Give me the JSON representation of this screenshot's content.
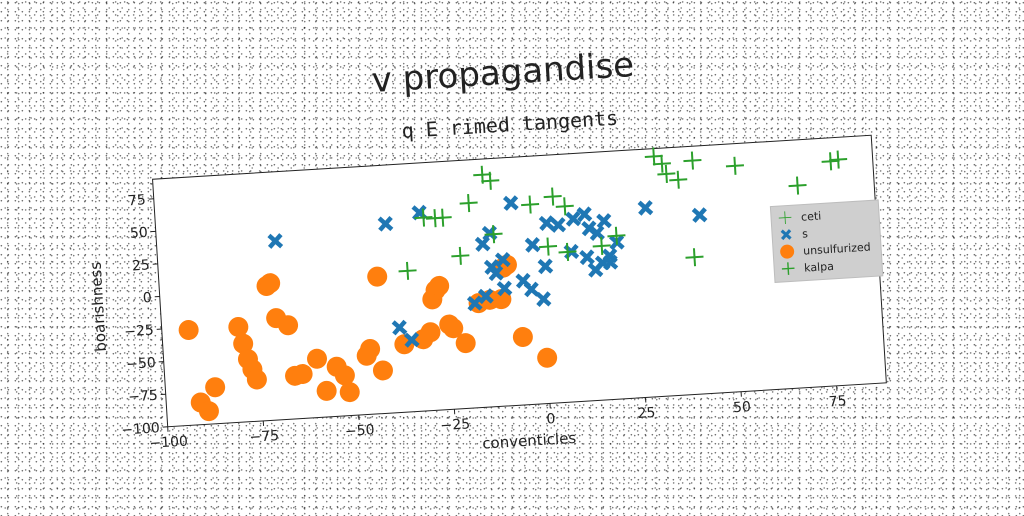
{
  "chart_data": {
    "type": "scatter",
    "title": "v propagandise",
    "subtitle": "q E rimed tangents",
    "xlabel": "conventicles",
    "ylabel": "boarishness",
    "xlim": [
      -100,
      88
    ],
    "ylim": [
      -100,
      90
    ],
    "x_ticks": [
      -100,
      -75,
      -50,
      -25,
      0,
      25,
      50,
      75
    ],
    "y_ticks": [
      -100,
      -75,
      -50,
      -25,
      0,
      25,
      50,
      75
    ],
    "x_tick_labels": [
      "−100",
      "−75",
      "−50",
      "−25",
      "0",
      "25",
      "50",
      "75"
    ],
    "y_tick_labels": [
      "−100",
      "−75",
      "−50",
      "−25",
      "0",
      "25",
      "50",
      "75"
    ],
    "grid": false,
    "legend_position": "right",
    "series": [
      {
        "name": "ceti",
        "marker": "thin-plus",
        "color": "#2ca02c",
        "points": []
      },
      {
        "name": "s",
        "marker": "x",
        "color": "#1f77b4",
        "points": [
          [
            -69,
            37
          ],
          [
            -40,
            45
          ],
          [
            -31,
            52
          ],
          [
            -15,
            25
          ],
          [
            -13,
            33
          ],
          [
            -7,
            55
          ],
          [
            -15,
            -15
          ],
          [
            -13,
            7
          ],
          [
            -10,
            12
          ],
          [
            2,
            38
          ],
          [
            5,
            36
          ],
          [
            9,
            40
          ],
          [
            12,
            43
          ],
          [
            13,
            32
          ],
          [
            15,
            28
          ],
          [
            17,
            37
          ],
          [
            20,
            20
          ],
          [
            28,
            45
          ],
          [
            42,
            37
          ],
          [
            -2,
            22
          ],
          [
            1,
            5
          ],
          [
            8,
            15
          ],
          [
            12,
            10
          ],
          [
            16,
            5
          ],
          [
            18,
            10
          ],
          [
            -10,
            -10
          ],
          [
            -5,
            -5
          ],
          [
            -3,
            -12
          ],
          [
            0,
            -20
          ],
          [
            -38,
            -35
          ],
          [
            -35,
            -45
          ],
          [
            -18,
            -20
          ],
          [
            -15,
            -15
          ],
          [
            14,
            0
          ],
          [
            18,
            5
          ],
          [
            -12,
            2
          ]
        ]
      },
      {
        "name": "unsulfurized",
        "marker": "circle",
        "color": "#ff7f0e",
        "points": [
          [
            -93,
            -27
          ],
          [
            -91,
            -83
          ],
          [
            -89,
            -90
          ],
          [
            -87,
            -72
          ],
          [
            -80,
            -27
          ],
          [
            -79,
            -40
          ],
          [
            -78,
            -52
          ],
          [
            -77,
            -60
          ],
          [
            -76,
            -68
          ],
          [
            -72,
            3
          ],
          [
            -71,
            5
          ],
          [
            -70,
            -22
          ],
          [
            -67,
            -28
          ],
          [
            -66,
            -67
          ],
          [
            -64,
            -66
          ],
          [
            -60,
            -55
          ],
          [
            -58,
            -80
          ],
          [
            -55,
            -62
          ],
          [
            -53,
            -69
          ],
          [
            -52,
            -82
          ],
          [
            -47,
            -55
          ],
          [
            -46,
            -50
          ],
          [
            -43,
            -67
          ],
          [
            -43,
            5
          ],
          [
            -37,
            -48
          ],
          [
            -32,
            -45
          ],
          [
            -30,
            -40
          ],
          [
            -29,
            -15
          ],
          [
            -28,
            -8
          ],
          [
            -27,
            -5
          ],
          [
            -25,
            -35
          ],
          [
            -24,
            -38
          ],
          [
            -21,
            -50
          ],
          [
            -17,
            -20
          ],
          [
            -14,
            -18
          ],
          [
            -11,
            -18
          ],
          [
            -10,
            6
          ],
          [
            -9,
            8
          ],
          [
            -6,
            -48
          ],
          [
            0,
            -65
          ]
        ]
      },
      {
        "name": "kalpa",
        "marker": "plus",
        "color": "#2ca02c",
        "points": [
          [
            31,
            84
          ],
          [
            33,
            78
          ],
          [
            41,
            79
          ],
          [
            34,
            70
          ],
          [
            37,
            65
          ],
          [
            52,
            73
          ],
          [
            77,
            72
          ],
          [
            79,
            73
          ],
          [
            68,
            55
          ],
          [
            -14,
            78
          ],
          [
            -12,
            73
          ],
          [
            -2,
            53
          ],
          [
            -18,
            57
          ],
          [
            -25,
            47
          ],
          [
            -27,
            47
          ],
          [
            -30,
            48
          ],
          [
            4,
            58
          ],
          [
            7,
            50
          ],
          [
            -12,
            32
          ],
          [
            -21,
            17
          ],
          [
            2,
            20
          ],
          [
            7,
            15
          ],
          [
            20,
            25
          ],
          [
            16,
            18
          ],
          [
            40,
            5
          ],
          [
            -35,
            8
          ]
        ]
      }
    ]
  }
}
